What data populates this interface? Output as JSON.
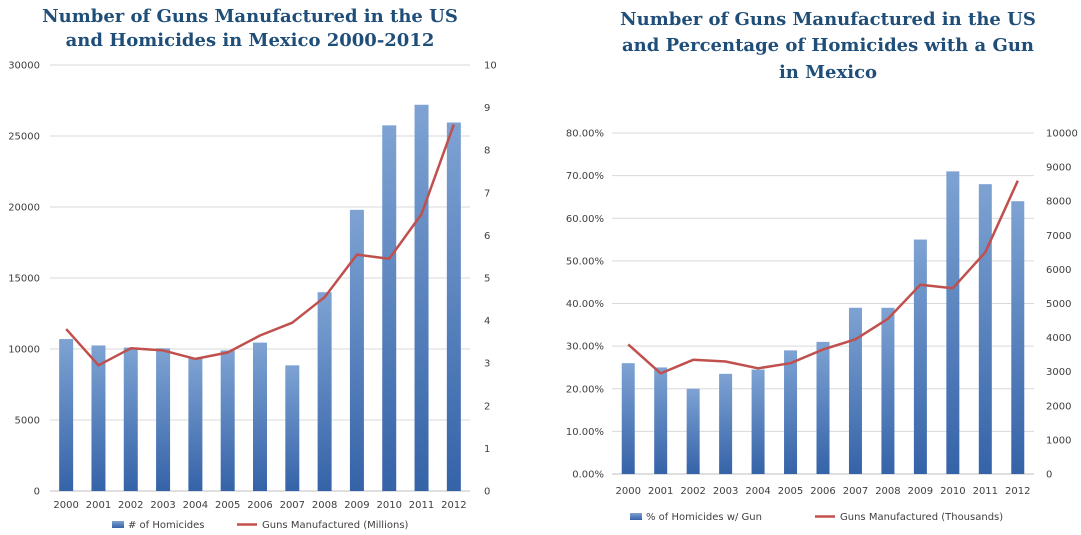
{
  "colors": {
    "bar_top": "#7ea3d3",
    "bar_bottom": "#3563a8",
    "line": "#c0504d",
    "title": "#1f4e79"
  },
  "chart_data": [
    {
      "type": "bar",
      "title_lines": [
        "Number of Guns Manufactured in the US",
        "and Homicides in Mexico 2000-2012"
      ],
      "categories": [
        "2000",
        "2001",
        "2002",
        "2003",
        "2004",
        "2005",
        "2006",
        "2007",
        "2008",
        "2009",
        "2010",
        "2011",
        "2012"
      ],
      "series": [
        {
          "name": "# of Homicides",
          "type": "bar",
          "axis": "left",
          "values": [
            10700,
            10250,
            10100,
            10050,
            9350,
            9900,
            10450,
            8850,
            14000,
            19800,
            25750,
            27200,
            25950
          ]
        },
        {
          "name": "Guns Manufactured (Millions)",
          "type": "line",
          "axis": "right",
          "values": [
            3.8,
            2.95,
            3.35,
            3.3,
            3.1,
            3.25,
            3.65,
            3.95,
            4.55,
            5.55,
            5.45,
            6.5,
            8.6
          ]
        }
      ],
      "ylim_left": [
        0,
        30000
      ],
      "yticks_left": [
        "0",
        "5000",
        "10000",
        "15000",
        "20000",
        "25000",
        "30000"
      ],
      "ylim_right": [
        0,
        10
      ],
      "yticks_right": [
        "0",
        "1",
        "2",
        "3",
        "4",
        "5",
        "6",
        "7",
        "8",
        "9",
        "10"
      ],
      "grid": true,
      "legend_position": "bottom"
    },
    {
      "type": "bar",
      "title_lines": [
        "Number of Guns Manufactured in the US",
        "and Percentage of Homicides with a Gun",
        "in Mexico"
      ],
      "categories": [
        "2000",
        "2001",
        "2002",
        "2003",
        "2004",
        "2005",
        "2006",
        "2007",
        "2008",
        "2009",
        "2010",
        "2011",
        "2012"
      ],
      "series": [
        {
          "name": "% of Homicides w/ Gun",
          "type": "bar",
          "axis": "left",
          "values": [
            26,
            25,
            20,
            23.5,
            24.5,
            29,
            31,
            39,
            39,
            55,
            71,
            68,
            64
          ]
        },
        {
          "name": "Guns Manufactured (Thousands)",
          "type": "line",
          "axis": "right",
          "values": [
            3800,
            2950,
            3350,
            3300,
            3100,
            3250,
            3650,
            3950,
            4550,
            5550,
            5450,
            6500,
            8600
          ]
        }
      ],
      "ylim_left": [
        0,
        80
      ],
      "yticks_left": [
        "0.00%",
        "10.00%",
        "20.00%",
        "30.00%",
        "40.00%",
        "50.00%",
        "60.00%",
        "70.00%",
        "80.00%"
      ],
      "ylim_right": [
        0,
        10000
      ],
      "yticks_right": [
        "0",
        "1000",
        "2000",
        "3000",
        "4000",
        "5000",
        "6000",
        "7000",
        "8000",
        "9000",
        "10000"
      ],
      "grid": true,
      "legend_position": "bottom"
    }
  ]
}
